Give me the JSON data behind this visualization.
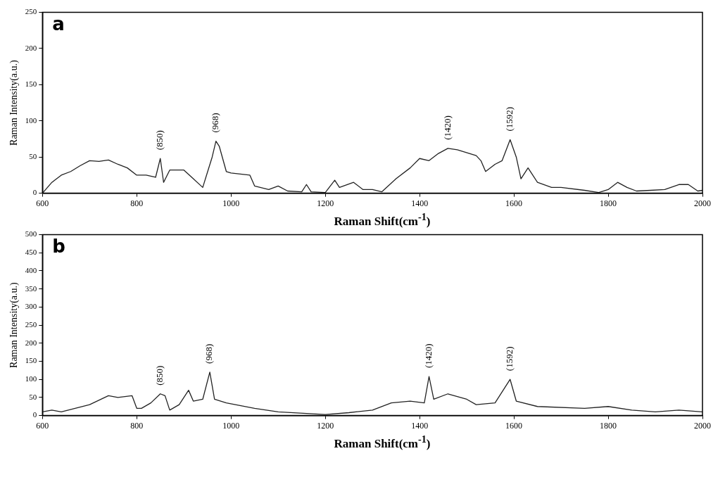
{
  "chart_data": [
    {
      "type": "line",
      "title": "a",
      "xlabel": "Raman Shift(cm$^{-1}$)",
      "ylabel": "Raman Intensity(a.u.)",
      "xlim": [
        600,
        2000
      ],
      "xticks": [
        600,
        800,
        1000,
        1200,
        1400,
        1600,
        1800,
        2000
      ],
      "ylim": [
        0,
        250
      ],
      "yticks": [
        0,
        50,
        100,
        150,
        200,
        250
      ],
      "grid": false,
      "legend": false,
      "marker": "none",
      "line_style": "solid",
      "annotations": [
        {
          "text": "(850)",
          "x": 850,
          "y": 48
        },
        {
          "text": "(968)",
          "x": 968,
          "y": 72
        },
        {
          "text": "(1420)",
          "x": 1460,
          "y": 62
        },
        {
          "text": "(1592)",
          "x": 1592,
          "y": 74
        }
      ],
      "series": [
        {
          "color": "#222222",
          "x": [
            600,
            620,
            640,
            660,
            680,
            700,
            720,
            740,
            760,
            780,
            800,
            820,
            840,
            850,
            857,
            870,
            900,
            920,
            940,
            960,
            968,
            975,
            990,
            1000,
            1040,
            1050,
            1080,
            1100,
            1120,
            1150,
            1160,
            1170,
            1200,
            1220,
            1230,
            1260,
            1280,
            1300,
            1320,
            1350,
            1380,
            1400,
            1420,
            1440,
            1460,
            1480,
            1520,
            1530,
            1540,
            1560,
            1575,
            1592,
            1605,
            1615,
            1630,
            1650,
            1680,
            1700,
            1750,
            1780,
            1800,
            1820,
            1840,
            1860,
            1890,
            1920,
            1950,
            1970,
            1990,
            2000
          ],
          "values": [
            0,
            15,
            25,
            30,
            38,
            45,
            44,
            46,
            40,
            35,
            25,
            25,
            22,
            48,
            15,
            32,
            32,
            20,
            8,
            50,
            72,
            65,
            30,
            28,
            25,
            10,
            5,
            10,
            3,
            2,
            12,
            2,
            1,
            18,
            8,
            15,
            5,
            5,
            2,
            20,
            35,
            48,
            45,
            55,
            62,
            60,
            52,
            45,
            30,
            40,
            45,
            74,
            50,
            20,
            35,
            15,
            8,
            8,
            4,
            1,
            5,
            15,
            8,
            3,
            4,
            5,
            12,
            12,
            3,
            4
          ]
        }
      ]
    },
    {
      "type": "line",
      "title": "b",
      "xlabel": "Raman Shift(cm$^{-1}$)",
      "ylabel": "Raman Intensity(a.u.)",
      "xlim": [
        600,
        2000
      ],
      "xticks": [
        600,
        800,
        1000,
        1200,
        1400,
        1600,
        1800,
        2000
      ],
      "ylim": [
        0,
        500
      ],
      "yticks": [
        0,
        50,
        100,
        150,
        200,
        250,
        300,
        350,
        400,
        450,
        500
      ],
      "grid": false,
      "legend": false,
      "marker": "none",
      "line_style": "solid",
      "annotations": [
        {
          "text": "(850)",
          "x": 850,
          "y": 60
        },
        {
          "text": "(968)",
          "x": 955,
          "y": 120
        },
        {
          "text": "(1420)",
          "x": 1420,
          "y": 108
        },
        {
          "text": "(1592)",
          "x": 1592,
          "y": 100
        }
      ],
      "series": [
        {
          "color": "#222222",
          "x": [
            600,
            620,
            640,
            700,
            740,
            760,
            790,
            800,
            810,
            830,
            850,
            860,
            870,
            890,
            910,
            920,
            940,
            955,
            965,
            990,
            1050,
            1100,
            1200,
            1250,
            1300,
            1340,
            1380,
            1410,
            1420,
            1430,
            1460,
            1500,
            1520,
            1560,
            1592,
            1605,
            1650,
            1750,
            1800,
            1850,
            1900,
            1950,
            2000
          ],
          "values": [
            10,
            15,
            10,
            30,
            55,
            50,
            55,
            20,
            20,
            35,
            60,
            55,
            15,
            30,
            70,
            40,
            45,
            120,
            45,
            35,
            20,
            10,
            3,
            8,
            15,
            35,
            40,
            35,
            108,
            45,
            60,
            45,
            30,
            35,
            100,
            40,
            25,
            20,
            25,
            15,
            10,
            15,
            10
          ]
        }
      ]
    }
  ]
}
